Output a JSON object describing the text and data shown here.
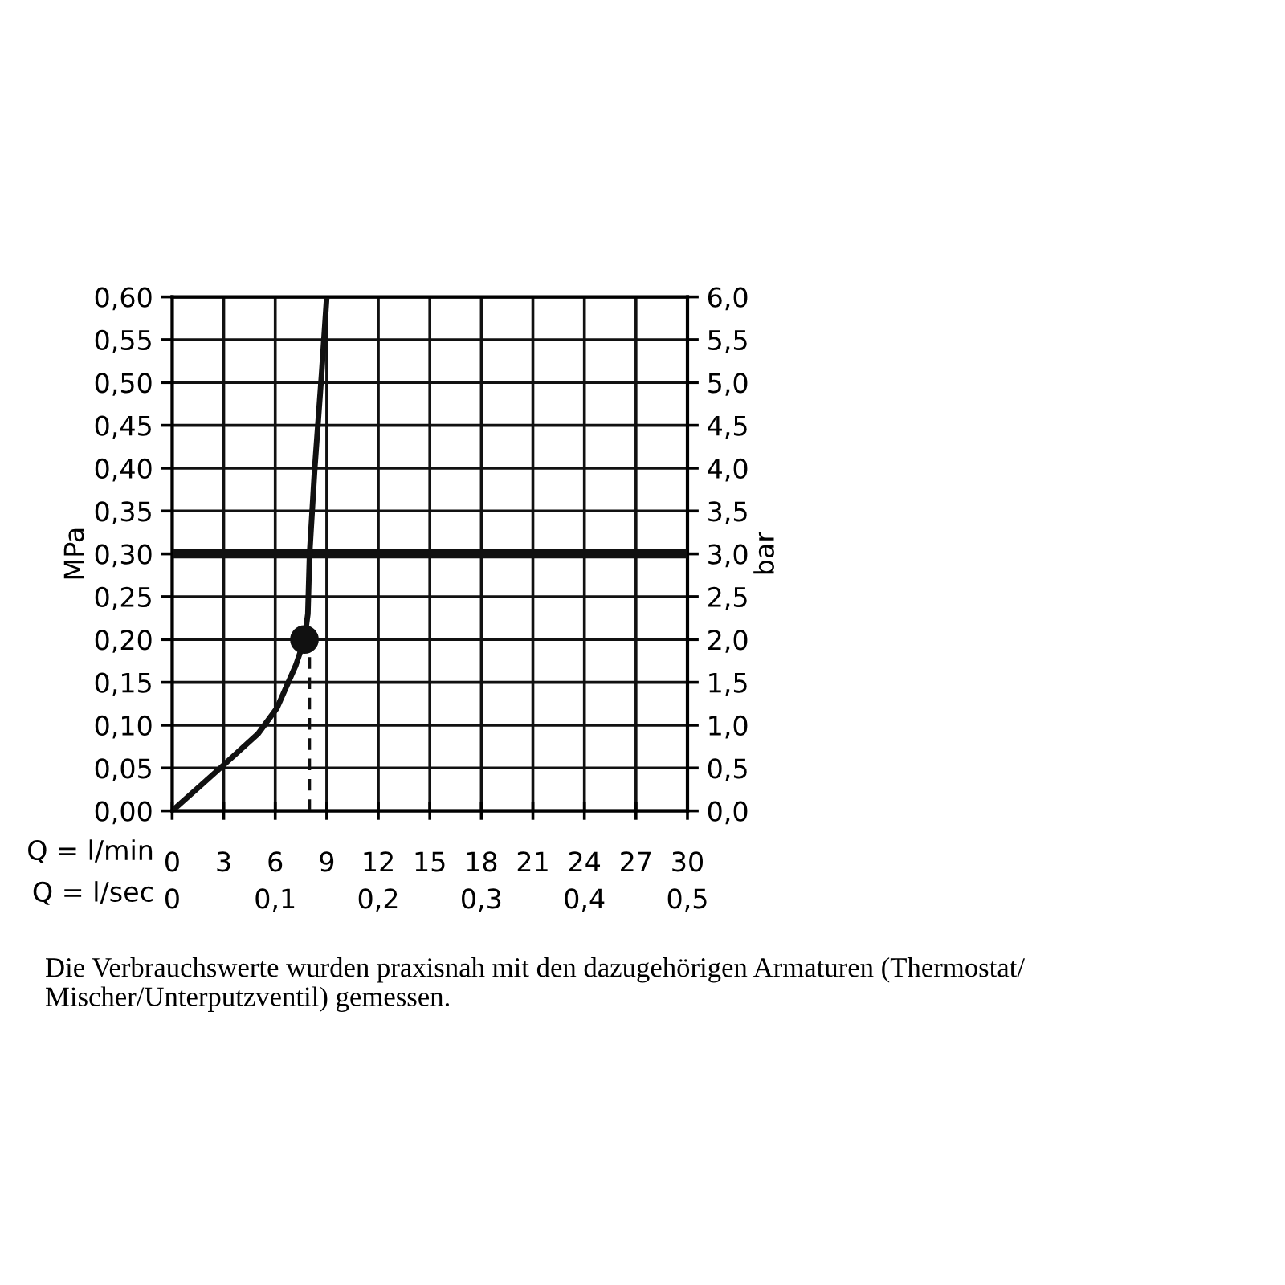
{
  "chart_data": {
    "type": "line",
    "xlabel": "Q = l/min",
    "x2label": "Q = l/sec",
    "ylabel": "MPa",
    "y2label": "bar",
    "xlim": [
      0,
      30
    ],
    "xticks": [
      0,
      3,
      6,
      9,
      12,
      15,
      18,
      21,
      24,
      27,
      30
    ],
    "x2lim": [
      0,
      0.5
    ],
    "x2ticks": [
      0,
      {
        "value": 0.1,
        "label": "0,1"
      },
      {
        "value": 0.2,
        "label": "0,2"
      },
      {
        "value": 0.3,
        "label": "0,3"
      },
      {
        "value": 0.4,
        "label": "0,4"
      },
      {
        "value": 0.5,
        "label": "0,5"
      }
    ],
    "ylim": [
      0,
      0.6
    ],
    "yticks": [
      {
        "value": 0,
        "label": "0,00"
      },
      {
        "value": 0.05,
        "label": "0,05"
      },
      {
        "value": 0.1,
        "label": "0,10"
      },
      {
        "value": 0.15,
        "label": "0,15"
      },
      {
        "value": 0.2,
        "label": "0,20"
      },
      {
        "value": 0.25,
        "label": "0,25"
      },
      {
        "value": 0.3,
        "label": "0,30"
      },
      {
        "value": 0.35,
        "label": "0,35"
      },
      {
        "value": 0.4,
        "label": "0,40"
      },
      {
        "value": 0.45,
        "label": "0,45"
      },
      {
        "value": 0.5,
        "label": "0,50"
      },
      {
        "value": 0.55,
        "label": "0,55"
      },
      {
        "value": 0.6,
        "label": "0,60"
      }
    ],
    "y2lim": [
      0,
      6
    ],
    "y2ticks": [
      {
        "value": 0,
        "label": "0,0"
      },
      {
        "value": 0.5,
        "label": "0,5"
      },
      {
        "value": 1,
        "label": "1,0"
      },
      {
        "value": 1.5,
        "label": "1,5"
      },
      {
        "value": 2,
        "label": "2,0"
      },
      {
        "value": 2.5,
        "label": "2,5"
      },
      {
        "value": 3,
        "label": "3,0"
      },
      {
        "value": 3.5,
        "label": "3,5"
      },
      {
        "value": 4,
        "label": "4,0"
      },
      {
        "value": 4.5,
        "label": "4,5"
      },
      {
        "value": 5,
        "label": "5,0"
      },
      {
        "value": 5.5,
        "label": "5,5"
      },
      {
        "value": 6,
        "label": "6,0"
      }
    ],
    "grid": true,
    "series": [
      {
        "color": "#111111",
        "line_style": "solid",
        "x": [
          0,
          2.8,
          5.0,
          6.1,
          7.2,
          7.7,
          7.9,
          8.0,
          8.3,
          8.7,
          9.0
        ],
        "values": [
          0,
          0.05,
          0.09,
          0.12,
          0.17,
          0.2,
          0.23,
          0.3,
          0.4,
          0.51,
          0.6
        ]
      },
      {
        "type": "line",
        "color": "#111111",
        "line_style": "dashed",
        "x": [
          8.0,
          8.0
        ],
        "values": [
          0,
          0.2
        ]
      },
      {
        "type": "scatter",
        "color": "#111111",
        "marker": "circle",
        "x": [
          7.7
        ],
        "values": [
          0.2
        ]
      }
    ],
    "ref_lines": [
      {
        "axis": "y",
        "value": 0.3,
        "color": "#111111",
        "line_style": "solid"
      }
    ],
    "annotations": [
      "Die Verbrauchswerte wurden praxisnah mit den dazugehörigen Armaturen (Thermostat/ Mischer/Unterputzventil) gemessen."
    ]
  }
}
